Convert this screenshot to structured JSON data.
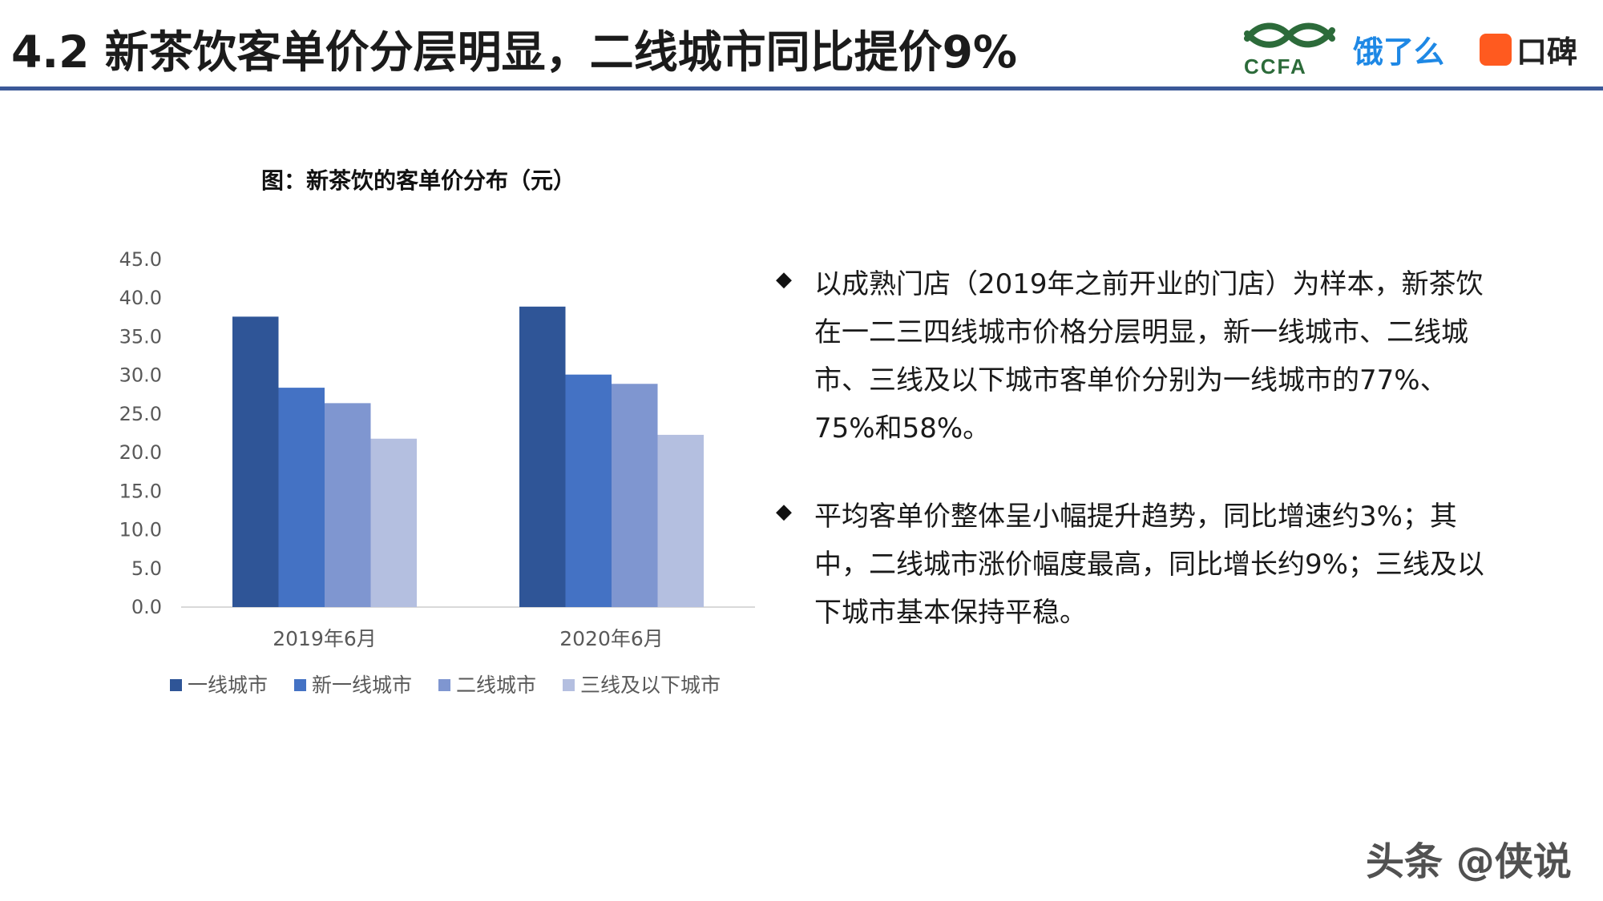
{
  "header": {
    "title": "4.2 新茶饮客单价分层明显，二线城市同比提价9%",
    "logos": {
      "ccfa": "CCFA",
      "eleme": "饿了么",
      "koubei": "口碑"
    }
  },
  "chart_data": {
    "type": "bar",
    "title": "图：新茶饮的客单价分布（元）",
    "categories": [
      "2019年6月",
      "2020年6月"
    ],
    "series": [
      {
        "name": "一线城市",
        "color": "#2f5597",
        "values": [
          37.6,
          38.9
        ]
      },
      {
        "name": "新一线城市",
        "color": "#4472c4",
        "values": [
          28.4,
          30.1
        ]
      },
      {
        "name": "二线城市",
        "color": "#7f96d0",
        "values": [
          26.4,
          28.9
        ]
      },
      {
        "name": "三线及以下城市",
        "color": "#b4bfe0",
        "values": [
          21.8,
          22.3
        ]
      }
    ],
    "yticks": [
      "0.0",
      "5.0",
      "10.0",
      "15.0",
      "20.0",
      "25.0",
      "30.0",
      "35.0",
      "40.0",
      "45.0"
    ],
    "ylim": [
      0,
      45
    ],
    "legend_position": "bottom",
    "grid": false
  },
  "bullets": [
    {
      "icon": "diamond-bullet-icon",
      "text": "以成熟门店（2019年之前开业的门店）为样本，新茶饮在一二三四线城市价格分层明显，新一线城市、二线城市、三线及以下城市客单价分别为一线城市的77%、75%和58%。"
    },
    {
      "icon": "diamond-bullet-icon",
      "text": "平均客单价整体呈小幅提升趋势，同比增速约3%；其中，二线城市涨价幅度最高，同比增长约9%；三线及以下城市基本保持平稳。"
    }
  ],
  "watermark": "头条 @侠说"
}
